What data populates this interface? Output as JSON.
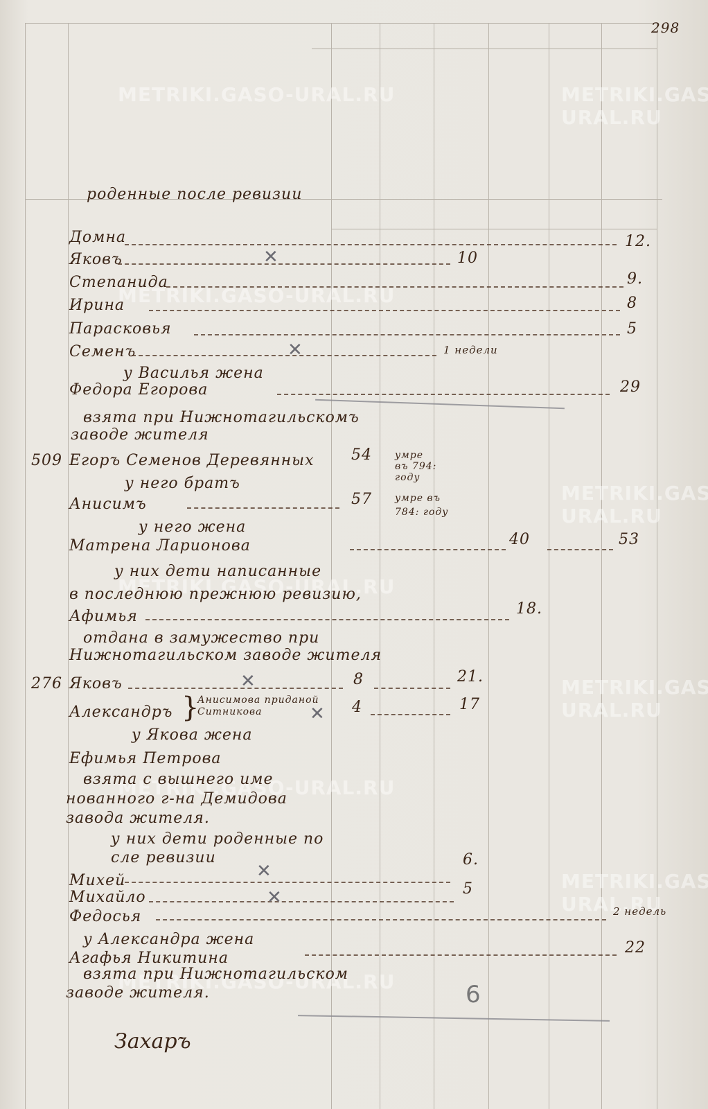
{
  "page_number": "298",
  "watermark": "METRIKI.GASO-URAL.RU",
  "heading": "роденные после ревизии",
  "lines": {
    "domna": {
      "name": "Домна",
      "age": "12."
    },
    "yakov1": {
      "name": "Яковъ",
      "age": "10"
    },
    "stepanida": {
      "name": "Степанида",
      "age": "9."
    },
    "irina": {
      "name": "Ирина",
      "age": "8"
    },
    "paraskovya": {
      "name": "Парасковья",
      "age": "5"
    },
    "semen": {
      "name": "Семенъ",
      "age": "1 недели"
    },
    "vasily_wife": "у Василья жена",
    "fedora": {
      "name": "Федора Егорова",
      "age": "29"
    },
    "fedora_note1": "взята при Нижнотагильскомъ",
    "fedora_note2": "заводе жителя",
    "egor": {
      "number": "509",
      "name": "Егоръ Семенов Деревянных",
      "age": "54",
      "note1": "умре",
      "note2": "въ 794:",
      "note3": "году"
    },
    "brother": "у него братъ",
    "anisim": {
      "name": "Анисимъ",
      "age": "57",
      "note1": "умре въ",
      "note2": "784: году"
    },
    "his_wife": "у него жена",
    "matrena": {
      "name": "Матрена Ларионова",
      "age1": "40",
      "age2": "53"
    },
    "children1": "у них дети написанные",
    "children2": "в последнюю прежнюю ревизию,",
    "afimya": {
      "name": "Афимья",
      "age": "18."
    },
    "afimya_note1": "отдана в замужество при",
    "afimya_note2": "Нижнотагильском заводе жителя",
    "yakov2": {
      "number": "276",
      "name": "Яковъ",
      "age1": "8",
      "age2": "21."
    },
    "alexandr": {
      "name": "Александръ",
      "note1": "Анисимова приданой",
      "note2": "Ситникова",
      "age1": "4",
      "age2": "17"
    },
    "yakov_wife": "у Якова жена",
    "efimya": {
      "name": "Ефимья Петрова"
    },
    "efimya_note1": "взята с вышнего име",
    "efimya_note2": "нованного г-на Демидова",
    "efimya_note3": "завода жителя.",
    "children3": "у них дети роденные по",
    "children4": "сле ревизии",
    "mikhey": {
      "name": "Михей",
      "age": "6."
    },
    "mikhailo": {
      "name": "Михайло",
      "age": "5"
    },
    "fedosya": {
      "name": "Федосья",
      "age": "2 недель"
    },
    "alexandr_wife": "у Александра жена",
    "agafya": {
      "name": "Агафья Никитина",
      "age": "22"
    },
    "agafya_note1": "взята при Нижнотагильском",
    "agafya_note2": "заводе жителя.",
    "pencil_mark": "6"
  },
  "signature": "Захаръ",
  "colors": {
    "ink": "#3b2517",
    "paper": "#eae7e1",
    "pencil": "#8a8a90"
  }
}
